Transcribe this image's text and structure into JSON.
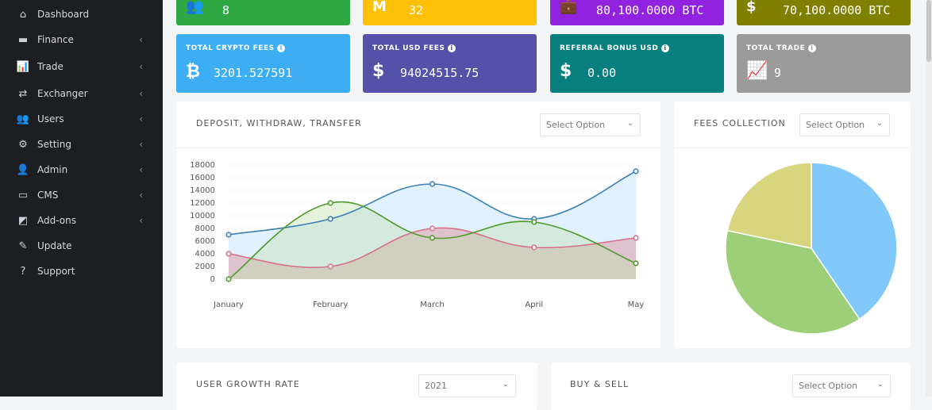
{
  "sidebar": {
    "items": [
      {
        "label": "Dashboard",
        "icon": "home-icon",
        "glyph": "⌂",
        "chev": false
      },
      {
        "label": "Finance",
        "icon": "credit-card-icon",
        "glyph": "▬",
        "chev": true
      },
      {
        "label": "Trade",
        "icon": "chart-icon",
        "glyph": "📊",
        "chev": true
      },
      {
        "label": "Exchanger",
        "icon": "exchange-icon",
        "glyph": "⇄",
        "chev": true
      },
      {
        "label": "Users",
        "icon": "users-icon",
        "glyph": "👥",
        "chev": true
      },
      {
        "label": "Setting",
        "icon": "gear-icon",
        "glyph": "⚙",
        "chev": true
      },
      {
        "label": "Admin",
        "icon": "user-icon",
        "glyph": "👤",
        "chev": true
      },
      {
        "label": "CMS",
        "icon": "monitor-icon",
        "glyph": "▭",
        "chev": true
      },
      {
        "label": "Add-ons",
        "icon": "puzzle-icon",
        "glyph": "◩",
        "chev": true
      },
      {
        "label": "Update",
        "icon": "magic-wand-icon",
        "glyph": "✎",
        "chev": false
      },
      {
        "label": "Support",
        "icon": "question-icon",
        "glyph": "?",
        "chev": false
      }
    ],
    "chev": "‹"
  },
  "top_cards": [
    {
      "value": "8",
      "icon": "users-icon",
      "glyph": "👥",
      "color": "#2ea844"
    },
    {
      "value": "32",
      "icon": "medium-icon",
      "glyph": "M",
      "color": "#ffc107"
    },
    {
      "value": "80,100.0000 BTC",
      "icon": "briefcase-icon",
      "glyph": "💼",
      "color": "#9022e0"
    },
    {
      "value": "70,100.0000 BTC",
      "icon": "dollar-box-icon",
      "glyph": "$",
      "color": "#808000"
    }
  ],
  "stat_cards": [
    {
      "label": "TOTAL CRYPTO FEES",
      "value": "3201.527591",
      "icon": "bitcoin-icon",
      "glyph": "₿",
      "color": "#3eaef4"
    },
    {
      "label": "TOTAL USD FEES",
      "value": "94024515.75",
      "icon": "hand-dollar-icon",
      "glyph": "$",
      "color": "#5352a8"
    },
    {
      "label": "REFERRAL BONUS USD",
      "value": "0.00",
      "icon": "dollar-icon",
      "glyph": "$",
      "color": "#087f7f"
    },
    {
      "label": "TOTAL TRADE",
      "value": "9",
      "icon": "chart-icon",
      "glyph": "📈",
      "color": "#9b9b9b"
    }
  ],
  "info_glyph": "i",
  "deposit_panel": {
    "title": "DEPOSIT, WITHDRAW, TRANSFER",
    "select": "Select Option"
  },
  "fees_panel": {
    "title": "FEES COLLECTION",
    "select": "Select Option"
  },
  "growth_panel": {
    "title": "USER GROWTH RATE",
    "select": "2021"
  },
  "buysell_panel": {
    "title": "BUY & SELL",
    "select": "Select Option"
  },
  "chart_data": [
    {
      "type": "line",
      "categories": [
        "January",
        "February",
        "March",
        "April",
        "May"
      ],
      "ylim": [
        0,
        18000
      ],
      "yticks": [
        0,
        2000,
        4000,
        6000,
        8000,
        10000,
        12000,
        14000,
        16000,
        18000
      ],
      "grid": true,
      "series": [
        {
          "color": "#3d7fb8",
          "fill": "rgba(170,215,250,0.35)",
          "values": [
            7000,
            9500,
            15000,
            9500,
            17000
          ]
        },
        {
          "color": "#d9708a",
          "fill": "rgba(220,140,150,0.45)",
          "values": [
            4000,
            2000,
            8000,
            5000,
            6500
          ]
        },
        {
          "color": "#4e9a2a",
          "fill": "rgba(190,225,170,0.4)",
          "values": [
            0,
            12000,
            6500,
            9000,
            2500
          ]
        }
      ]
    },
    {
      "type": "pie",
      "values": [
        40.5,
        37.8,
        21.7
      ],
      "colors": [
        "#82c9fb",
        "#9ccf78",
        "#d7d57d"
      ]
    }
  ]
}
